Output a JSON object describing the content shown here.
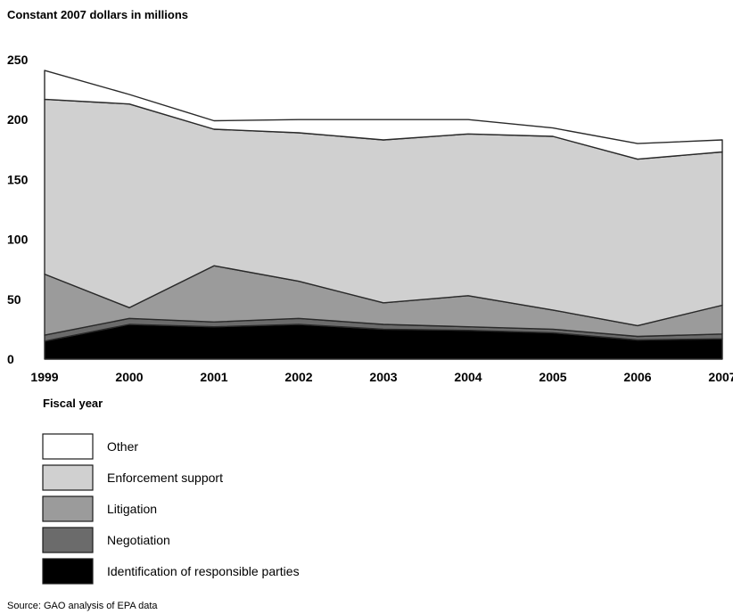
{
  "chart_data": {
    "type": "area",
    "stacked": true,
    "ylabel": "Constant 2007 dollars in millions",
    "xlabel": "Fiscal year",
    "ylim": [
      0,
      250
    ],
    "yticks": [
      0,
      50,
      100,
      150,
      200,
      250
    ],
    "categories": [
      "1999",
      "2000",
      "2001",
      "2002",
      "2003",
      "2004",
      "2005",
      "2006",
      "2007"
    ],
    "grid": false,
    "legend_position": "bottom",
    "series": [
      {
        "name": "Identification of responsible parties",
        "color": "#000000",
        "values": [
          15,
          29,
          27,
          29,
          25,
          24,
          22,
          16,
          17
        ]
      },
      {
        "name": "Negotiation",
        "color": "#6b6b6b",
        "values": [
          5,
          5,
          4,
          5,
          4,
          3,
          3,
          3,
          4
        ]
      },
      {
        "name": "Litigation",
        "color": "#9b9b9b",
        "values": [
          51,
          9,
          47,
          31,
          18,
          26,
          16,
          9,
          24
        ]
      },
      {
        "name": "Enforcement support",
        "color": "#d0d0d0",
        "values": [
          146,
          170,
          114,
          124,
          136,
          135,
          145,
          139,
          128
        ]
      },
      {
        "name": "Other",
        "color": "#ffffff",
        "values": [
          24,
          8,
          7,
          11,
          17,
          12,
          7,
          13,
          10
        ]
      }
    ]
  },
  "source": "Source: GAO analysis of EPA data"
}
